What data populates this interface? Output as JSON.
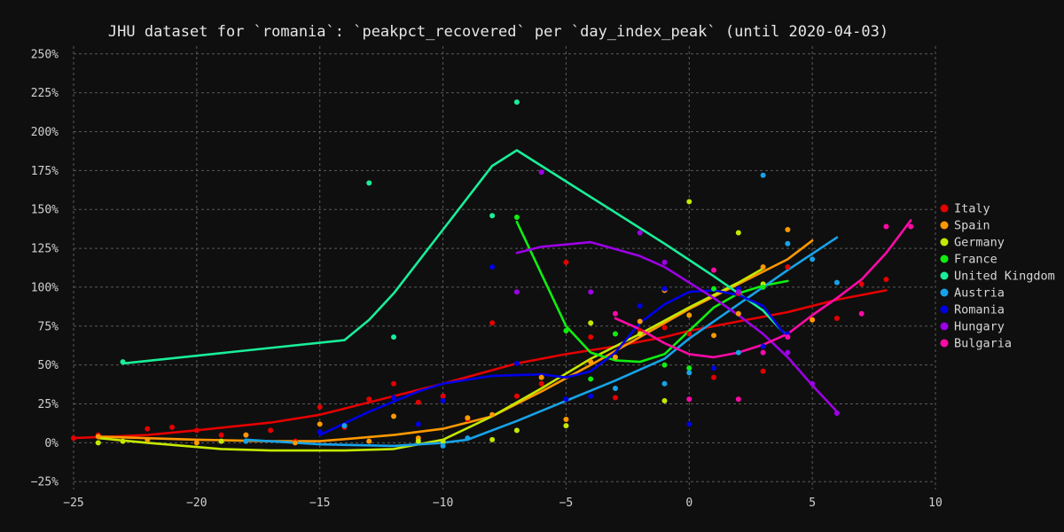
{
  "chart_data": {
    "type": "scatter",
    "title": "JHU dataset for `romania`: `peakpct_recovered` per `day_index_peak` (until 2020-04-03)",
    "xlabel": "",
    "ylabel": "",
    "xlim": [
      -25,
      10
    ],
    "ylim": [
      -30,
      255
    ],
    "x_ticks": [
      -25,
      -20,
      -15,
      -10,
      -5,
      0,
      5,
      10
    ],
    "y_ticks": [
      -25,
      0,
      25,
      50,
      75,
      100,
      125,
      150,
      175,
      200,
      225,
      250
    ],
    "y_tick_suffix": "%",
    "grid": true,
    "legend_position": "right",
    "series": [
      {
        "name": "Italy",
        "color": "#e50000",
        "points": [
          [
            -25,
            3
          ],
          [
            -24,
            5
          ],
          [
            -23,
            1
          ],
          [
            -22,
            9
          ],
          [
            -21,
            10
          ],
          [
            -20,
            8
          ],
          [
            -19,
            5
          ],
          [
            -18,
            5
          ],
          [
            -17,
            8
          ],
          [
            -16,
            1
          ],
          [
            -15,
            23
          ],
          [
            -14,
            10
          ],
          [
            -13,
            28
          ],
          [
            -12,
            38
          ],
          [
            -11,
            26
          ],
          [
            -10,
            30
          ],
          [
            -9,
            15
          ],
          [
            -8,
            77
          ],
          [
            -7,
            30
          ],
          [
            -6,
            38
          ],
          [
            -5,
            116
          ],
          [
            -4,
            68
          ],
          [
            -3,
            29
          ],
          [
            -2,
            72
          ],
          [
            -1,
            74
          ],
          [
            0,
            70
          ],
          [
            1,
            42
          ],
          [
            2,
            96
          ],
          [
            3,
            46
          ],
          [
            4,
            113
          ],
          [
            5,
            79
          ],
          [
            6,
            80
          ],
          [
            7,
            102
          ],
          [
            8,
            105
          ]
        ],
        "trend": [
          [
            -25,
            3
          ],
          [
            -22,
            5
          ],
          [
            -20,
            8
          ],
          [
            -17,
            13
          ],
          [
            -15,
            18
          ],
          [
            -13,
            26
          ],
          [
            -10,
            38
          ],
          [
            -7,
            51
          ],
          [
            -5,
            57
          ],
          [
            -3,
            62
          ],
          [
            -1,
            68
          ],
          [
            0,
            72
          ],
          [
            2,
            78
          ],
          [
            4,
            84
          ],
          [
            6,
            92
          ],
          [
            8,
            98
          ]
        ]
      },
      {
        "name": "Spain",
        "color": "#ff9900",
        "points": [
          [
            -24,
            4
          ],
          [
            -22,
            2
          ],
          [
            -20,
            0
          ],
          [
            -18,
            5
          ],
          [
            -16,
            0
          ],
          [
            -15,
            12
          ],
          [
            -13,
            1
          ],
          [
            -12,
            17
          ],
          [
            -11,
            3
          ],
          [
            -9,
            16
          ],
          [
            -8,
            18
          ],
          [
            -6,
            42
          ],
          [
            -5,
            15
          ],
          [
            -4,
            52
          ],
          [
            -3,
            55
          ],
          [
            -2,
            78
          ],
          [
            -1,
            98
          ],
          [
            0,
            82
          ],
          [
            1,
            69
          ],
          [
            2,
            83
          ],
          [
            3,
            113
          ],
          [
            4,
            137
          ],
          [
            5,
            79
          ]
        ],
        "trend": [
          [
            -24,
            4
          ],
          [
            -20,
            2
          ],
          [
            -17,
            1
          ],
          [
            -15,
            1
          ],
          [
            -12,
            5
          ],
          [
            -10,
            9
          ],
          [
            -8,
            17
          ],
          [
            -6,
            33
          ],
          [
            -4,
            50
          ],
          [
            -2,
            68
          ],
          [
            0,
            86
          ],
          [
            2,
            102
          ],
          [
            4,
            118
          ],
          [
            5,
            130
          ]
        ]
      },
      {
        "name": "Germany",
        "color": "#c5e800",
        "points": [
          [
            -24,
            0
          ],
          [
            -23,
            1
          ],
          [
            -19,
            1
          ],
          [
            -11,
            1
          ],
          [
            -10,
            1
          ],
          [
            -8,
            2
          ],
          [
            -7,
            8
          ],
          [
            -5,
            11
          ],
          [
            -4,
            77
          ],
          [
            -2,
            70
          ],
          [
            -1,
            27
          ],
          [
            0,
            155
          ],
          [
            2,
            135
          ],
          [
            3,
            102
          ]
        ],
        "trend": [
          [
            -24,
            3
          ],
          [
            -22,
            0
          ],
          [
            -19,
            -4
          ],
          [
            -17,
            -5
          ],
          [
            -14,
            -5
          ],
          [
            -12,
            -4
          ],
          [
            -10,
            2
          ],
          [
            -8,
            17
          ],
          [
            -6,
            35
          ],
          [
            -4,
            54
          ],
          [
            -2,
            70
          ],
          [
            0,
            87
          ],
          [
            2,
            103
          ],
          [
            3,
            112
          ]
        ]
      },
      {
        "name": "France",
        "color": "#10ee10",
        "points": [
          [
            -7,
            145
          ],
          [
            -5,
            72
          ],
          [
            -4,
            41
          ],
          [
            -3,
            70
          ],
          [
            -1,
            50
          ],
          [
            0,
            48
          ],
          [
            1,
            99
          ],
          [
            2,
            98
          ],
          [
            3,
            100
          ]
        ],
        "trend": [
          [
            -7,
            142
          ],
          [
            -5,
            75
          ],
          [
            -4,
            58
          ],
          [
            -3,
            53
          ],
          [
            -2,
            52
          ],
          [
            -1,
            57
          ],
          [
            0,
            72
          ],
          [
            1,
            87
          ],
          [
            2,
            96
          ],
          [
            3,
            101
          ],
          [
            4,
            104
          ]
        ]
      },
      {
        "name": "United Kingdom",
        "color": "#19ee99",
        "points": [
          [
            -23,
            52
          ],
          [
            -13,
            167
          ],
          [
            -12,
            68
          ],
          [
            -8,
            146
          ],
          [
            -7,
            219
          ]
        ],
        "trend": [
          [
            -23,
            51
          ],
          [
            -14,
            66
          ],
          [
            -13,
            79
          ],
          [
            -12,
            96
          ],
          [
            -10,
            137
          ],
          [
            -8,
            178
          ],
          [
            -7,
            188
          ],
          [
            -5,
            168
          ],
          [
            -3,
            148
          ],
          [
            -1,
            128
          ],
          [
            1,
            107
          ],
          [
            3,
            85
          ],
          [
            4,
            68
          ]
        ]
      },
      {
        "name": "Austria",
        "color": "#17a3e8",
        "points": [
          [
            -18,
            1
          ],
          [
            -14,
            11
          ],
          [
            -10,
            -2
          ],
          [
            -9,
            3
          ],
          [
            -3,
            35
          ],
          [
            -1,
            38
          ],
          [
            0,
            45
          ],
          [
            2,
            58
          ],
          [
            3,
            172
          ],
          [
            4,
            128
          ],
          [
            5,
            118
          ],
          [
            6,
            103
          ]
        ],
        "trend": [
          [
            -18,
            2
          ],
          [
            -15,
            -1
          ],
          [
            -12,
            -2
          ],
          [
            -10,
            0
          ],
          [
            -9,
            2
          ],
          [
            -7,
            14
          ],
          [
            -5,
            27
          ],
          [
            -3,
            40
          ],
          [
            -1,
            54
          ],
          [
            0,
            67
          ],
          [
            2,
            89
          ],
          [
            4,
            111
          ],
          [
            6,
            132
          ]
        ]
      },
      {
        "name": "Romania",
        "color": "#0000e6",
        "points": [
          [
            -15,
            7
          ],
          [
            -12,
            29
          ],
          [
            -11,
            12
          ],
          [
            -10,
            27
          ],
          [
            -8,
            113
          ],
          [
            -7,
            51
          ],
          [
            -5,
            28
          ],
          [
            -4,
            30
          ],
          [
            -2,
            88
          ],
          [
            -1,
            99
          ],
          [
            0,
            12
          ],
          [
            1,
            48
          ],
          [
            2,
            99
          ],
          [
            3,
            62
          ],
          [
            4,
            70
          ]
        ],
        "trend": [
          [
            -15,
            5
          ],
          [
            -13,
            20
          ],
          [
            -11,
            33
          ],
          [
            -10,
            38
          ],
          [
            -8,
            43
          ],
          [
            -6,
            44
          ],
          [
            -5,
            42
          ],
          [
            -4,
            46
          ],
          [
            -3,
            58
          ],
          [
            -2,
            77
          ],
          [
            -1,
            89
          ],
          [
            0,
            97
          ],
          [
            1,
            98
          ],
          [
            2,
            95
          ],
          [
            3,
            88
          ],
          [
            4,
            67
          ]
        ]
      },
      {
        "name": "Hungary",
        "color": "#9d00e6",
        "points": [
          [
            -7,
            97
          ],
          [
            -6,
            174
          ],
          [
            -4,
            97
          ],
          [
            -2,
            135
          ],
          [
            -1,
            116
          ],
          [
            2,
            97
          ],
          [
            4,
            58
          ],
          [
            5,
            38
          ],
          [
            6,
            19
          ]
        ],
        "trend": [
          [
            -7,
            122
          ],
          [
            -6,
            126
          ],
          [
            -4,
            129
          ],
          [
            -2,
            120
          ],
          [
            -1,
            113
          ],
          [
            0,
            103
          ],
          [
            1,
            93
          ],
          [
            2,
            82
          ],
          [
            3,
            70
          ],
          [
            4,
            55
          ],
          [
            5,
            37
          ],
          [
            6,
            20
          ]
        ]
      },
      {
        "name": "Bulgaria",
        "color": "#ff0aa6",
        "points": [
          [
            -3,
            83
          ],
          [
            0,
            28
          ],
          [
            1,
            111
          ],
          [
            2,
            28
          ],
          [
            3,
            58
          ],
          [
            4,
            68
          ],
          [
            7,
            83
          ],
          [
            8,
            139
          ],
          [
            9,
            139
          ]
        ],
        "trend": [
          [
            -3,
            80
          ],
          [
            -2,
            73
          ],
          [
            -1,
            64
          ],
          [
            0,
            57
          ],
          [
            1,
            55
          ],
          [
            2,
            58
          ],
          [
            3,
            63
          ],
          [
            4,
            70
          ],
          [
            5,
            82
          ],
          [
            6,
            93
          ],
          [
            7,
            105
          ],
          [
            8,
            122
          ],
          [
            9,
            143
          ]
        ]
      }
    ]
  }
}
